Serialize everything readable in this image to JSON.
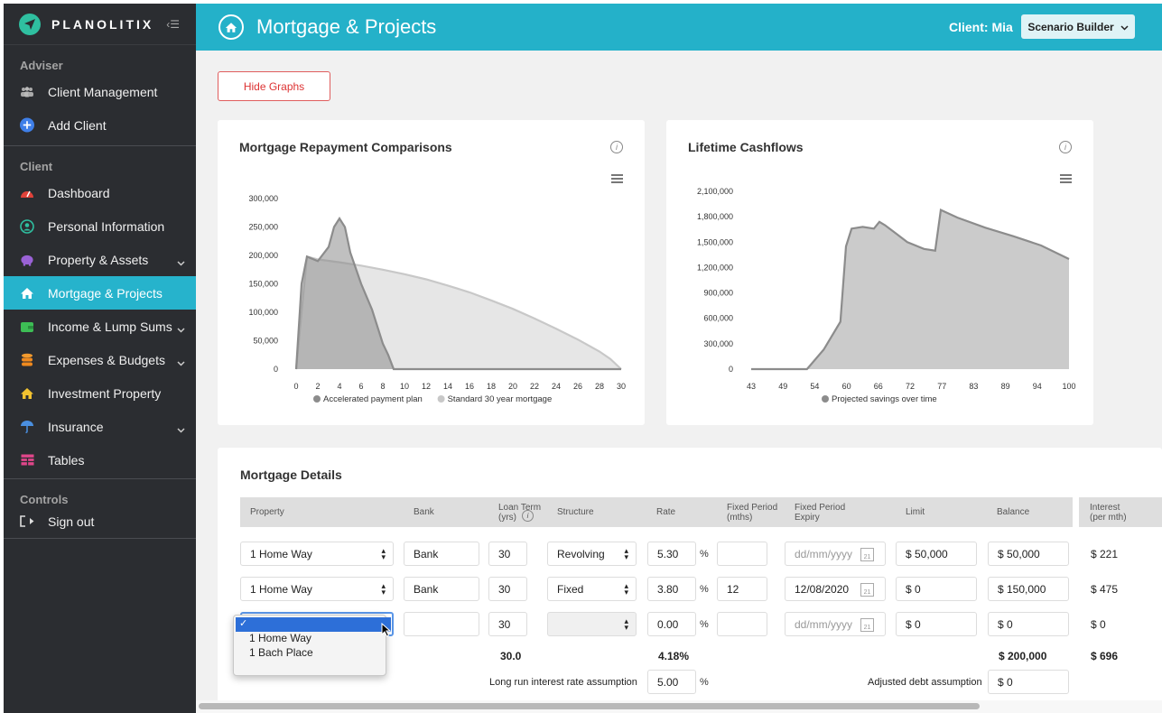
{
  "app": {
    "brand": "PLANOLITIX"
  },
  "sidebar": {
    "adviser_title": "Adviser",
    "adviser_items": [
      {
        "label": "Client Management",
        "icon": "users-icon"
      },
      {
        "label": "Add Client",
        "icon": "plus-circle-icon"
      }
    ],
    "client_title": "Client",
    "client_items": [
      {
        "label": "Dashboard",
        "icon": "gauge-icon"
      },
      {
        "label": "Personal Information",
        "icon": "user-circle-icon"
      },
      {
        "label": "Property & Assets",
        "icon": "piggy-bank-icon",
        "expandable": true
      },
      {
        "label": "Mortgage & Projects",
        "icon": "home-icon",
        "active": true
      },
      {
        "label": "Income & Lump Sums",
        "icon": "wallet-icon",
        "expandable": true
      },
      {
        "label": "Expenses & Budgets",
        "icon": "coins-icon",
        "expandable": true
      },
      {
        "label": "Investment Property",
        "icon": "house-icon"
      },
      {
        "label": "Insurance",
        "icon": "umbrella-icon",
        "expandable": true
      },
      {
        "label": "Tables",
        "icon": "table-icon"
      }
    ],
    "controls_title": "Controls",
    "controls_items": [
      {
        "label": "Sign out",
        "icon": "sign-out-icon"
      }
    ]
  },
  "header": {
    "title": "Mortgage & Projects",
    "client_label": "Client: Mia",
    "scenario_button": "Scenario Builder"
  },
  "hide_graphs_label": "Hide Graphs",
  "colors": {
    "accent": "#24b1c9",
    "sidebar": "#2b2d31",
    "danger": "#e05d5d",
    "series_dark": "#8c8c8c",
    "series_light": "#c8c8c8"
  },
  "chart_data": [
    {
      "type": "area",
      "title": "Mortgage Repayment Comparisons",
      "x_ticks": [
        "0",
        "2",
        "4",
        "6",
        "8",
        "10",
        "12",
        "14",
        "16",
        "18",
        "20",
        "22",
        "24",
        "26",
        "28",
        "30"
      ],
      "y_ticks": [
        "300,000",
        "250,000",
        "200,000",
        "150,000",
        "100,000",
        "50,000",
        "0"
      ],
      "ylim": [
        0,
        300000
      ],
      "xlim": [
        0,
        30
      ],
      "series": [
        {
          "name": "Accelerated payment plan",
          "color": "#8c8c8c",
          "x": [
            0,
            0.5,
            1,
            2,
            3,
            3.5,
            4,
            4.5,
            5,
            6,
            7,
            8,
            8.5,
            9,
            10,
            30
          ],
          "y": [
            0,
            150000,
            198000,
            190000,
            215000,
            250000,
            265000,
            250000,
            205000,
            150000,
            105000,
            45000,
            25000,
            0,
            0,
            0
          ]
        },
        {
          "name": "Standard 30 year mortgage",
          "color": "#c8c8c8",
          "x": [
            0,
            1,
            2,
            4,
            6,
            8,
            10,
            12,
            14,
            16,
            18,
            20,
            22,
            24,
            26,
            28,
            29,
            30
          ],
          "y": [
            0,
            198000,
            193000,
            188000,
            182000,
            175000,
            167000,
            158000,
            147000,
            135000,
            121000,
            106000,
            89000,
            71000,
            52000,
            31000,
            18000,
            0
          ]
        }
      ]
    },
    {
      "type": "area",
      "title": "Lifetime Cashflows",
      "x_ticks": [
        "43",
        "49",
        "54",
        "60",
        "66",
        "72",
        "77",
        "83",
        "89",
        "94",
        "100"
      ],
      "y_ticks": [
        "2,100,000",
        "1,800,000",
        "1,500,000",
        "1,200,000",
        "900,000",
        "600,000",
        "300,000",
        "0"
      ],
      "ylim": [
        0,
        2100000
      ],
      "xlim": [
        43,
        100
      ],
      "series": [
        {
          "name": "Projected savings over time",
          "color": "#8c8c8c",
          "x": [
            43,
            53,
            56,
            59,
            60,
            61,
            63,
            65,
            66,
            67,
            69,
            71,
            74,
            76,
            77,
            80,
            85,
            90,
            95,
            100
          ],
          "y": [
            0,
            0,
            230000,
            560000,
            1450000,
            1660000,
            1680000,
            1660000,
            1740000,
            1700000,
            1600000,
            1500000,
            1420000,
            1400000,
            1880000,
            1790000,
            1670000,
            1570000,
            1460000,
            1300000
          ]
        }
      ]
    }
  ],
  "mortgage": {
    "title": "Mortgage Details",
    "headers": {
      "property": "Property",
      "bank": "Bank",
      "loan_term": "Loan Term (yrs)",
      "structure": "Structure",
      "rate": "Rate",
      "fixed_period": "Fixed Period (mths)",
      "fixed_expiry": "Fixed Period Expiry",
      "limit": "Limit",
      "balance": "Balance",
      "interest": "Interest (per mth)"
    },
    "rows": [
      {
        "property": "1 Home Way",
        "bank": "Bank",
        "term": "30",
        "structure": "Revolving",
        "rate": "5.30",
        "fixed": "",
        "expiry": "dd/mm/yyyy",
        "limit": "$ 50,000",
        "balance": "$ 50,000",
        "interest": "$ 221"
      },
      {
        "property": "1 Home Way",
        "bank": "Bank",
        "term": "30",
        "structure": "Fixed",
        "rate": "3.80",
        "fixed": "12",
        "expiry": "12/08/2020",
        "limit": "$ 0",
        "balance": "$ 150,000",
        "interest": "$ 475"
      },
      {
        "property": "",
        "bank": "",
        "term": "30",
        "structure": "",
        "rate": "0.00",
        "fixed": "",
        "expiry": "dd/mm/yyyy",
        "limit": "$ 0",
        "balance": "$ 0",
        "interest": "$ 0"
      }
    ],
    "totals": {
      "term": "30.0",
      "rate": "4.18%",
      "balance": "$ 200,000",
      "interest": "$ 696"
    },
    "long_run_label": "Long run interest rate assumption",
    "long_run_value": "5.00",
    "adjusted_debt_label": "Adjusted debt assumption",
    "adjusted_debt_value": "$ 0",
    "dropdown": {
      "selected_mark": "✓",
      "options": [
        "1 Home Way",
        "1 Bach Place"
      ]
    }
  }
}
